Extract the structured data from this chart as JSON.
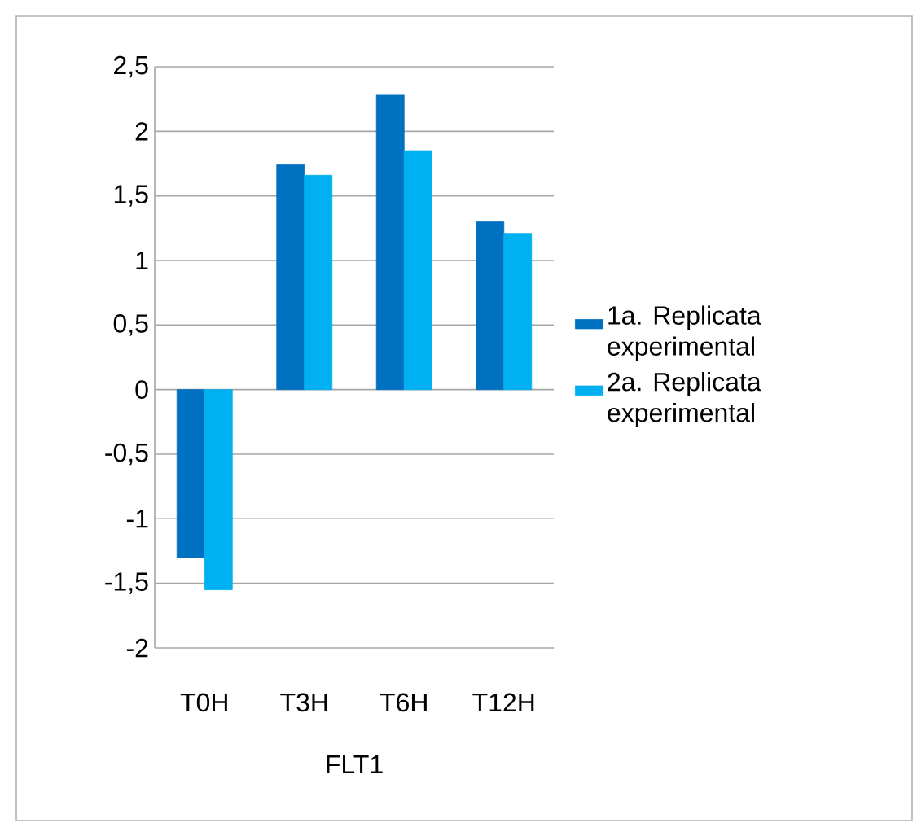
{
  "chart_data": {
    "type": "bar",
    "xlabel": "FLT1",
    "categories": [
      "T0H",
      "T3H",
      "T6H",
      "T12H"
    ],
    "series": [
      {
        "name": "1a. Replicata experimental",
        "color": "#0070c0",
        "values": [
          -1.3,
          1.74,
          2.28,
          1.3
        ]
      },
      {
        "name": "2a. Replicata experimental",
        "color": "#00b0f0",
        "values": [
          -1.55,
          1.66,
          1.85,
          1.21
        ]
      }
    ],
    "ylim": [
      -2,
      2.5
    ],
    "yticks": [
      {
        "value": -2,
        "label": "-2"
      },
      {
        "value": -1.5,
        "label": "-1,5"
      },
      {
        "value": -1,
        "label": "-1"
      },
      {
        "value": -0.5,
        "label": "-0,5"
      },
      {
        "value": 0,
        "label": "0"
      },
      {
        "value": 0.5,
        "label": "0,5"
      },
      {
        "value": 1,
        "label": "1"
      },
      {
        "value": 1.5,
        "label": "1,5"
      },
      {
        "value": 2,
        "label": "2"
      },
      {
        "value": 2.5,
        "label": "2,5"
      }
    ],
    "grid": "y",
    "legend": "right"
  }
}
